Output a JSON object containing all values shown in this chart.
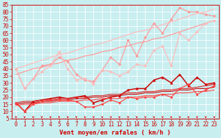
{
  "xlabel": "Vent moyen/en rafales ( km/h )",
  "xlim": [
    -0.5,
    23.5
  ],
  "ylim": [
    5,
    85
  ],
  "yticks": [
    5,
    10,
    15,
    20,
    25,
    30,
    35,
    40,
    45,
    50,
    55,
    60,
    65,
    70,
    75,
    80,
    85
  ],
  "xticks": [
    0,
    1,
    2,
    3,
    4,
    5,
    6,
    7,
    8,
    9,
    10,
    11,
    12,
    13,
    14,
    15,
    16,
    17,
    18,
    19,
    20,
    21,
    22,
    23
  ],
  "bg_color": "#c8eef0",
  "grid_color": "#aadddd",
  "lines": [
    {
      "x": [
        0,
        1,
        2,
        3,
        4,
        5,
        6,
        7,
        8,
        9,
        10,
        11,
        12,
        13,
        14,
        15,
        16,
        17,
        18,
        19,
        20,
        21,
        22,
        23
      ],
      "y": [
        40,
        26,
        33,
        42,
        43,
        48,
        45,
        36,
        32,
        31,
        39,
        48,
        43,
        60,
        49,
        62,
        72,
        65,
        75,
        83,
        80,
        80,
        78,
        77
      ],
      "color": "#ff9999",
      "lw": 0.9,
      "marker": "D",
      "ms": 2.0
    },
    {
      "x": [
        0,
        1,
        2,
        3,
        4,
        5,
        6,
        7,
        8,
        9,
        10,
        11,
        12,
        13,
        14,
        15,
        16,
        17,
        18,
        19,
        20,
        21,
        22,
        23
      ],
      "y": [
        36,
        38,
        40,
        41,
        43,
        44,
        46,
        47,
        49,
        50,
        52,
        53,
        55,
        56,
        58,
        59,
        61,
        62,
        64,
        66,
        68,
        70,
        72,
        74
      ],
      "color": "#ff9999",
      "lw": 0.9,
      "marker": null,
      "ms": 0
    },
    {
      "x": [
        0,
        1,
        2,
        3,
        4,
        5,
        6,
        7,
        8,
        9,
        10,
        11,
        12,
        13,
        14,
        15,
        16,
        17,
        18,
        19,
        20,
        21,
        22,
        23
      ],
      "y": [
        40,
        42,
        44,
        46,
        48,
        50,
        51,
        53,
        55,
        57,
        58,
        60,
        62,
        64,
        66,
        67,
        69,
        71,
        73,
        75,
        77,
        79,
        80,
        82
      ],
      "color": "#ffbbbb",
      "lw": 0.9,
      "marker": null,
      "ms": 0
    },
    {
      "x": [
        0,
        1,
        2,
        3,
        4,
        5,
        6,
        7,
        8,
        9,
        10,
        11,
        12,
        13,
        14,
        15,
        16,
        17,
        18,
        19,
        20,
        21,
        22,
        23
      ],
      "y": [
        40,
        26,
        33,
        38,
        42,
        52,
        40,
        32,
        33,
        29,
        39,
        38,
        35,
        38,
        43,
        42,
        53,
        56,
        42,
        65,
        60,
        66,
        72,
        74
      ],
      "color": "#ffbbbb",
      "lw": 0.9,
      "marker": "D",
      "ms": 2.0
    },
    {
      "x": [
        0,
        1,
        2,
        3,
        4,
        5,
        6,
        7,
        8,
        9,
        10,
        11,
        12,
        13,
        14,
        15,
        16,
        17,
        18,
        19,
        20,
        21,
        22,
        23
      ],
      "y": [
        16,
        10,
        17,
        18,
        19,
        20,
        19,
        20,
        21,
        16,
        18,
        20,
        21,
        25,
        26,
        26,
        32,
        34,
        30,
        36,
        28,
        34,
        29,
        30
      ],
      "color": "#cc0000",
      "lw": 1.1,
      "marker": "^",
      "ms": 2.5
    },
    {
      "x": [
        0,
        1,
        2,
        3,
        4,
        5,
        6,
        7,
        8,
        9,
        10,
        11,
        12,
        13,
        14,
        15,
        16,
        17,
        18,
        19,
        20,
        21,
        22,
        23
      ],
      "y": [
        15,
        16,
        16,
        17,
        17,
        18,
        18,
        19,
        19,
        20,
        20,
        21,
        21,
        22,
        22,
        23,
        23,
        24,
        24,
        25,
        25,
        26,
        26,
        27
      ],
      "color": "#cc0000",
      "lw": 0.8,
      "marker": null,
      "ms": 0
    },
    {
      "x": [
        0,
        1,
        2,
        3,
        4,
        5,
        6,
        7,
        8,
        9,
        10,
        11,
        12,
        13,
        14,
        15,
        16,
        17,
        18,
        19,
        20,
        21,
        22,
        23
      ],
      "y": [
        16,
        17,
        17,
        18,
        18,
        19,
        19,
        20,
        20,
        21,
        21,
        22,
        22,
        23,
        23,
        24,
        24,
        25,
        25,
        26,
        26,
        27,
        28,
        29
      ],
      "color": "#dd2222",
      "lw": 0.8,
      "marker": null,
      "ms": 0
    },
    {
      "x": [
        0,
        1,
        2,
        3,
        4,
        5,
        6,
        7,
        8,
        9,
        10,
        11,
        12,
        13,
        14,
        15,
        16,
        17,
        18,
        19,
        20,
        21,
        22,
        23
      ],
      "y": [
        16,
        10,
        15,
        17,
        18,
        18,
        18,
        17,
        13,
        13,
        15,
        18,
        16,
        20,
        19,
        20,
        20,
        22,
        20,
        26,
        29,
        22,
        25,
        28
      ],
      "color": "#ff4444",
      "lw": 0.9,
      "marker": "D",
      "ms": 1.8
    },
    {
      "x": [
        0,
        1,
        2,
        3,
        4,
        5,
        6,
        7,
        8,
        9,
        10,
        11,
        12,
        13,
        14,
        15,
        16,
        17,
        18,
        19,
        20,
        21,
        22,
        23
      ],
      "y": [
        14,
        15,
        15,
        16,
        16,
        17,
        17,
        17,
        18,
        18,
        19,
        19,
        19,
        20,
        20,
        21,
        21,
        22,
        22,
        23,
        23,
        24,
        24,
        25
      ],
      "color": "#ff4444",
      "lw": 0.8,
      "marker": null,
      "ms": 0
    }
  ],
  "axis_fontsize": 5.5,
  "xlabel_fontsize": 6.5,
  "tick_color": "#cc0000",
  "xlabel_color": "#cc0000",
  "spine_color": "#cc0000"
}
